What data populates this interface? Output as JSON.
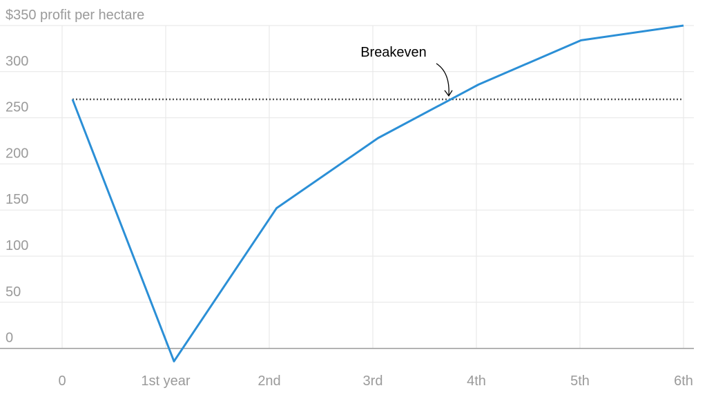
{
  "chart_data": {
    "type": "line",
    "x": [
      0.1,
      1.08,
      2.07,
      3.05,
      4.02,
      5.01,
      6
    ],
    "series": [
      {
        "name": "Profit per hectare",
        "color": "#2b8fd6",
        "values": [
          270,
          -14,
          152,
          228,
          286,
          334,
          350
        ]
      }
    ],
    "xlim": [
      -0.4,
      6.2
    ],
    "xticks": [
      0,
      {
        "value": 1,
        "label": "1st year"
      },
      {
        "value": 2,
        "label": "2nd"
      },
      {
        "value": 3,
        "label": "3rd"
      },
      {
        "value": 4,
        "label": "4th"
      },
      {
        "value": 5,
        "label": "5th"
      },
      {
        "value": 6,
        "label": "6th"
      }
    ],
    "ylim": [
      -25,
      350
    ],
    "yticks": [
      0,
      50,
      100,
      150,
      200,
      250,
      300,
      {
        "value": 350,
        "label": "$350 profit per hectare"
      }
    ],
    "grid": true,
    "reference_line": {
      "label": "Breakeven",
      "value": 270,
      "color": "#555555"
    }
  }
}
